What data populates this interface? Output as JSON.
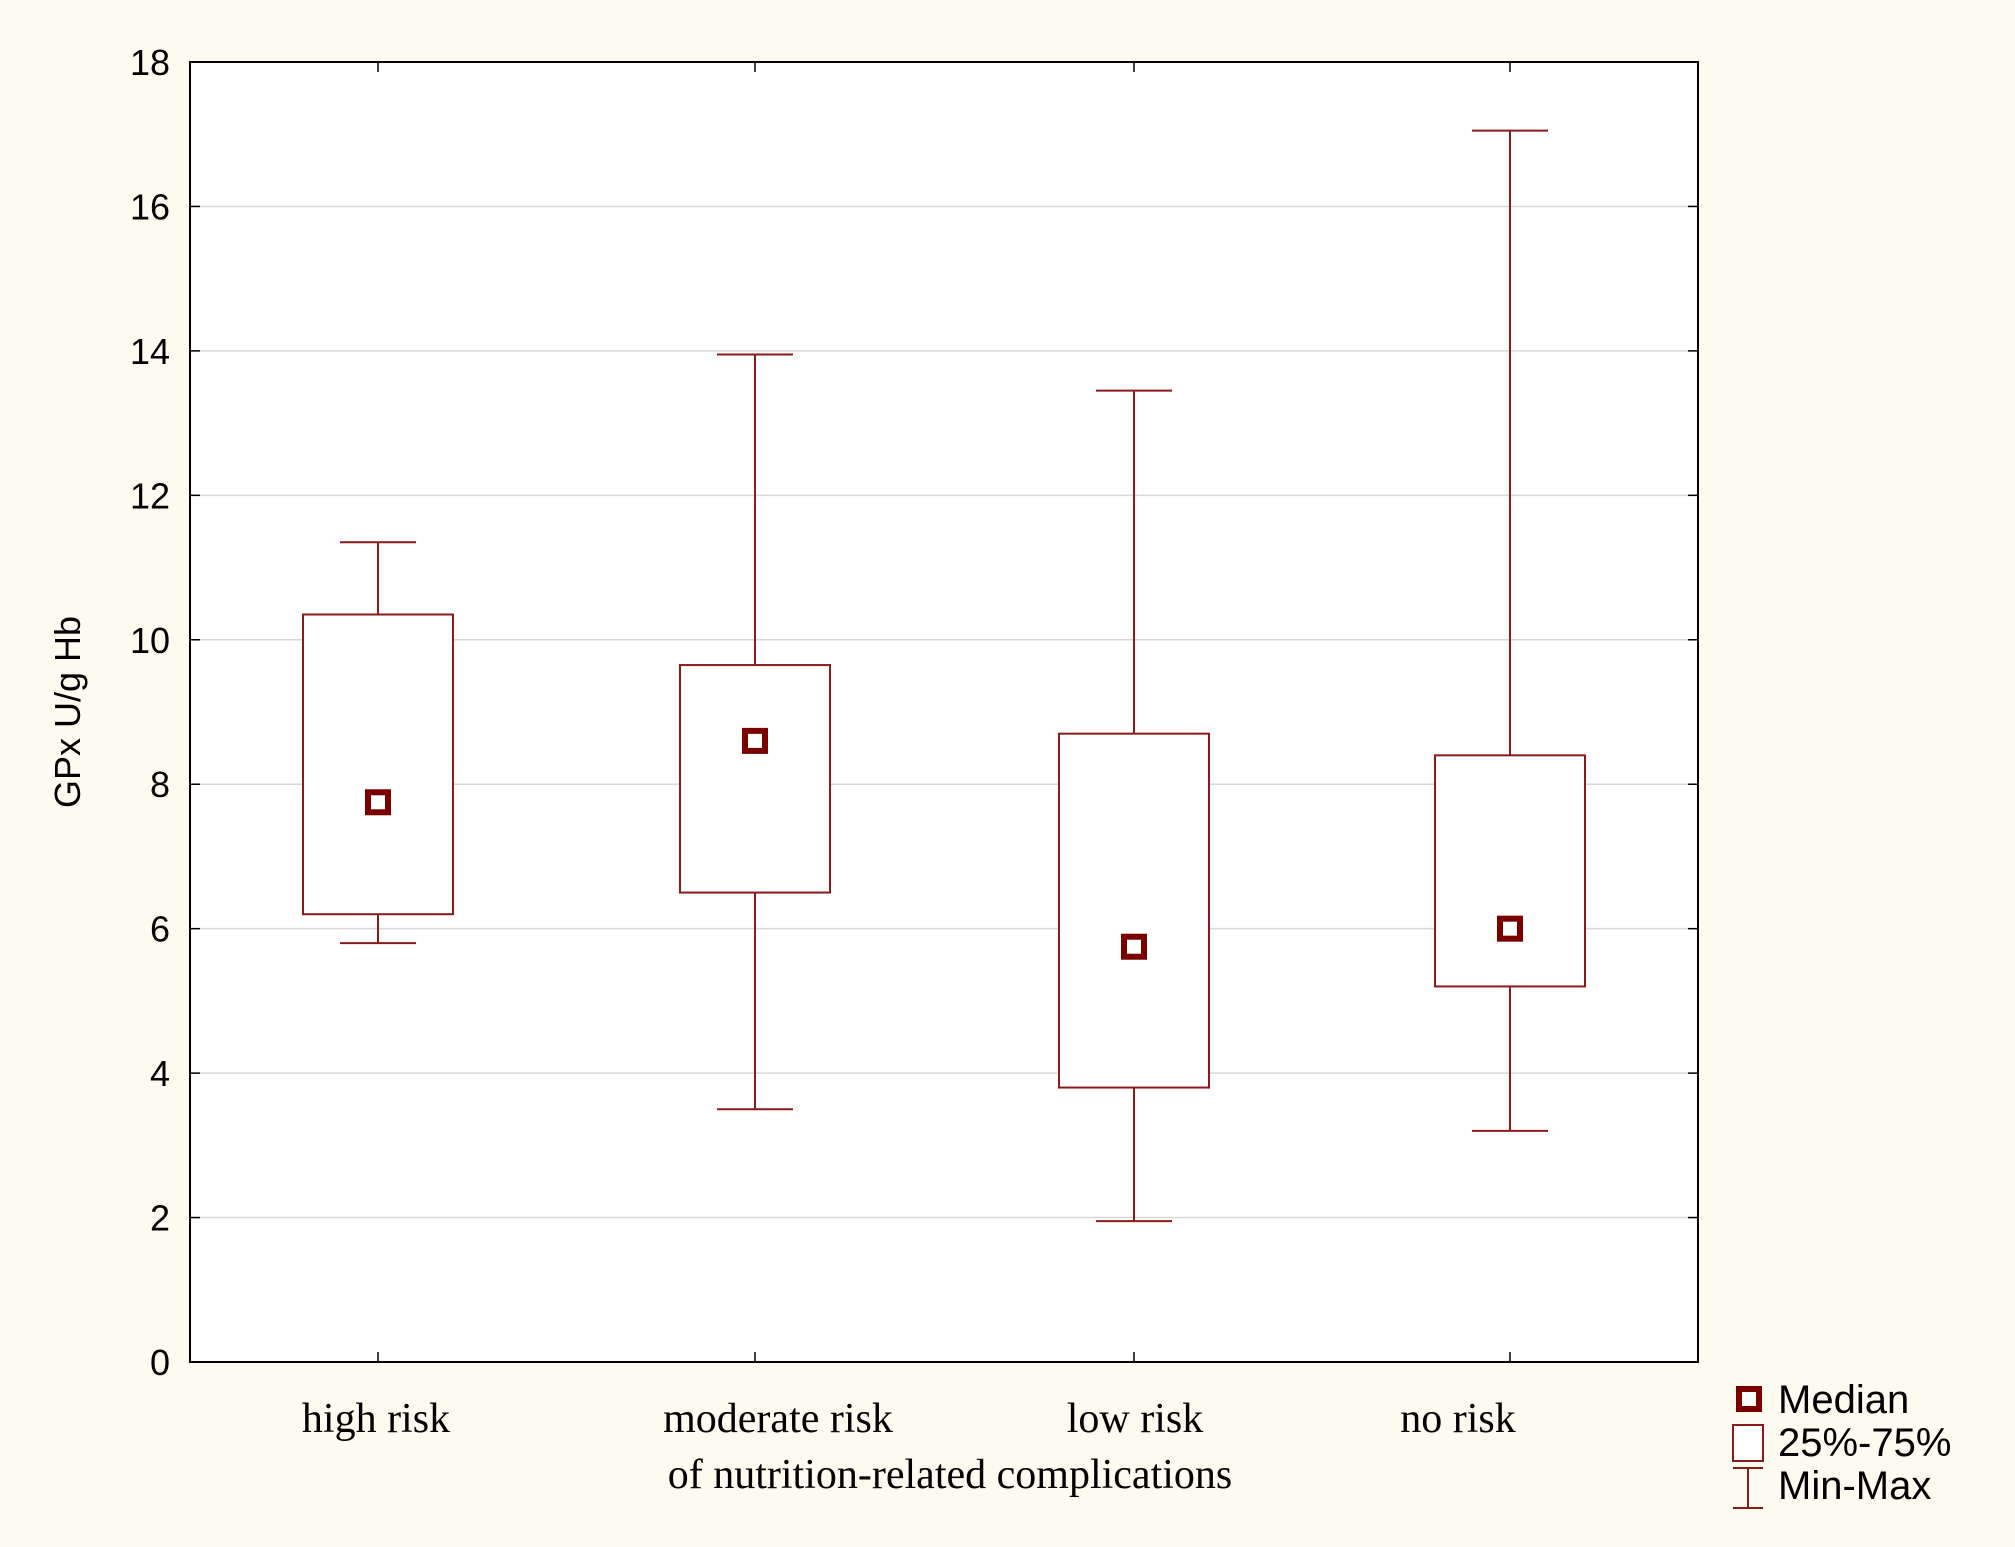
{
  "chart_data": {
    "type": "boxplot",
    "title": "",
    "xlabel": "of nutrition-related complications",
    "ylabel": "GPx U/g Hb",
    "ylim": [
      0,
      18
    ],
    "yticks": [
      0,
      2,
      4,
      6,
      8,
      10,
      12,
      14,
      16,
      18
    ],
    "grid": true,
    "categories": [
      "high risk",
      "moderate risk",
      "low risk",
      "no risk"
    ],
    "series": [
      {
        "name": "high risk",
        "min": 5.8,
        "q1": 6.2,
        "median": 7.75,
        "q3": 10.35,
        "max": 11.35
      },
      {
        "name": "moderate risk",
        "min": 3.5,
        "q1": 6.5,
        "median": 8.6,
        "q3": 9.65,
        "max": 13.95
      },
      {
        "name": "low risk",
        "min": 1.95,
        "q1": 3.8,
        "median": 5.75,
        "q3": 8.7,
        "max": 13.45
      },
      {
        "name": "no risk",
        "min": 3.2,
        "q1": 5.2,
        "median": 6.0,
        "q3": 8.4,
        "max": 17.05
      }
    ],
    "legend": {
      "position": "bottom-right",
      "items": [
        {
          "label": "Median",
          "symbol": "filled-square"
        },
        {
          "label": "25%-75%",
          "symbol": "box"
        },
        {
          "label": "Min-Max",
          "symbol": "whisker"
        }
      ]
    },
    "colors": {
      "box": "#8b1a1a",
      "median": "#7a0000",
      "grid": "#d8d8d8",
      "axis": "#000000"
    }
  }
}
